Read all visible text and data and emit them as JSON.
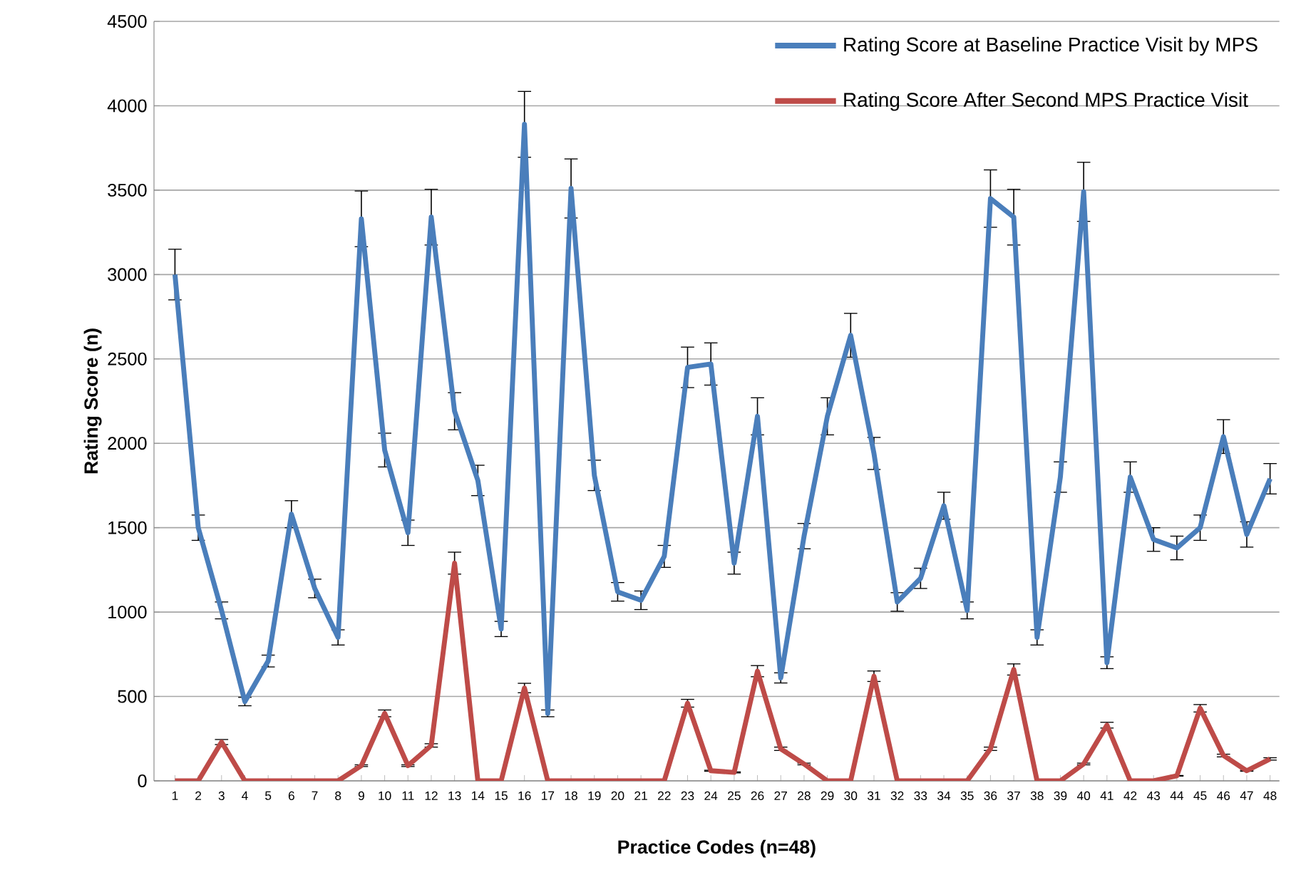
{
  "chart_data": {
    "type": "line",
    "xlabel": "Practice Codes (n=48)",
    "ylabel": "Rating Score (n)",
    "categories": [
      "1",
      "2",
      "3",
      "4",
      "5",
      "6",
      "7",
      "8",
      "9",
      "10",
      "11",
      "12",
      "13",
      "14",
      "15",
      "16",
      "17",
      "18",
      "19",
      "20",
      "21",
      "22",
      "23",
      "24",
      "25",
      "26",
      "27",
      "28",
      "29",
      "30",
      "31",
      "32",
      "33",
      "34",
      "35",
      "36",
      "37",
      "38",
      "39",
      "40",
      "41",
      "42",
      "43",
      "44",
      "45",
      "46",
      "47",
      "48"
    ],
    "series": [
      {
        "name": "Rating Score at Baseline Practice Visit by MPS",
        "color": "#4a7ebb",
        "values": [
          3000,
          1500,
          1010,
          470,
          710,
          1580,
          1140,
          850,
          3330,
          1960,
          1470,
          3340,
          2190,
          1780,
          900,
          3890,
          400,
          3510,
          1810,
          1120,
          1070,
          1330,
          2450,
          2470,
          1290,
          2160,
          610,
          1450,
          2160,
          2640,
          1940,
          1060,
          1200,
          1630,
          1010,
          3450,
          3340,
          850,
          1800,
          3490,
          700,
          1800,
          1430,
          1380,
          1500,
          2040,
          1460,
          1790
        ],
        "errors": [
          150,
          75,
          50,
          25,
          35,
          80,
          55,
          45,
          165,
          100,
          75,
          165,
          110,
          90,
          45,
          195,
          20,
          175,
          90,
          55,
          55,
          65,
          120,
          125,
          65,
          110,
          30,
          75,
          110,
          130,
          95,
          55,
          60,
          80,
          50,
          170,
          165,
          45,
          90,
          175,
          35,
          90,
          70,
          70,
          75,
          100,
          75,
          90
        ]
      },
      {
        "name": "Rating Score After Second MPS Practice Visit",
        "color": "#be4b48",
        "values": [
          0,
          0,
          230,
          0,
          0,
          0,
          0,
          0,
          90,
          400,
          90,
          210,
          1290,
          0,
          0,
          550,
          0,
          0,
          0,
          0,
          0,
          0,
          460,
          60,
          50,
          650,
          190,
          100,
          0,
          0,
          620,
          0,
          0,
          0,
          0,
          190,
          660,
          0,
          0,
          100,
          330,
          0,
          0,
          30,
          430,
          150,
          60,
          130
        ],
        "errors": [
          null,
          null,
          15,
          null,
          null,
          null,
          null,
          null,
          5,
          20,
          5,
          10,
          65,
          null,
          null,
          28,
          null,
          null,
          null,
          null,
          null,
          null,
          23,
          3,
          3,
          33,
          10,
          5,
          null,
          null,
          31,
          null,
          null,
          null,
          null,
          10,
          33,
          null,
          null,
          5,
          17,
          null,
          null,
          2,
          22,
          8,
          3,
          7
        ]
      }
    ],
    "ylim": [
      0,
      4500
    ],
    "yticks": [
      0,
      500,
      1000,
      1500,
      2000,
      2500,
      3000,
      3500,
      4000,
      4500
    ],
    "grid": "y",
    "legend": "top right",
    "marker": "none",
    "line_style": "solid"
  }
}
